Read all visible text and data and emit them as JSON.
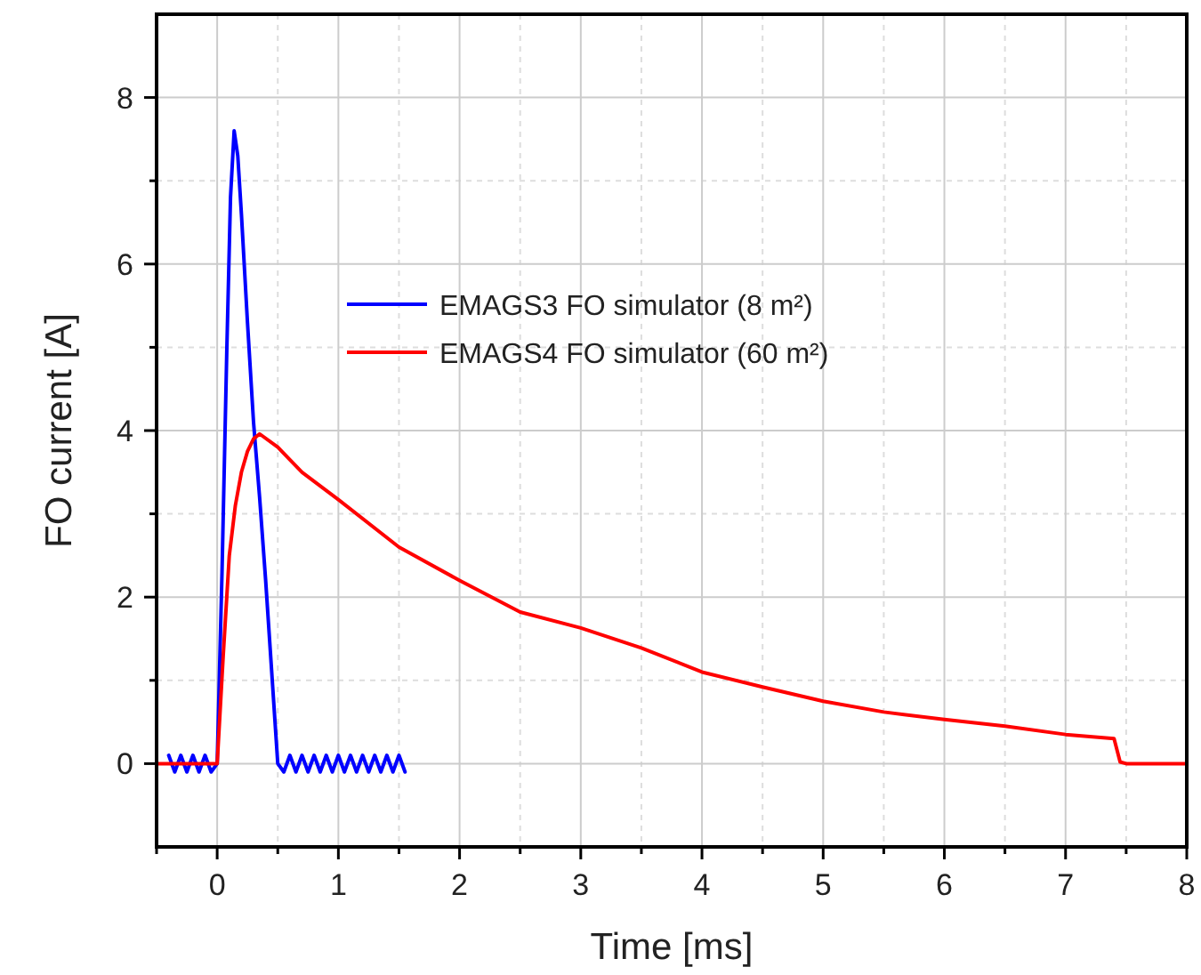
{
  "chart_data": {
    "type": "line",
    "xlabel": "Time [ms]",
    "ylabel": "FO current [A]",
    "xlim": [
      -0.5,
      8
    ],
    "ylim": [
      -1,
      9
    ],
    "xticks": [
      0,
      1,
      2,
      3,
      4,
      5,
      6,
      7,
      8
    ],
    "yticks": [
      0,
      2,
      4,
      6,
      8
    ],
    "grid": true,
    "legend": "top",
    "marker": "none",
    "line_style": "solid",
    "series": [
      {
        "name": "EMAGS3 FO simulator (8 m²)",
        "color": "#0000ff",
        "x": [
          -0.4,
          -0.35,
          -0.3,
          -0.25,
          -0.2,
          -0.15,
          -0.1,
          -0.05,
          0,
          0.04,
          0.08,
          0.11,
          0.14,
          0.17,
          0.2,
          0.25,
          0.3,
          0.35,
          0.4,
          0.45,
          0.5,
          0.55,
          0.6,
          0.65,
          0.7,
          0.75,
          0.8,
          0.85,
          0.9,
          0.95,
          1,
          1.05,
          1.1,
          1.15,
          1.2,
          1.25,
          1.3,
          1.35,
          1.4,
          1.45,
          1.5,
          1.55
        ],
        "values": [
          0.1,
          -0.1,
          0.1,
          -0.1,
          0.1,
          -0.1,
          0.1,
          -0.1,
          0,
          2.3,
          5,
          6.8,
          7.6,
          7.3,
          6.6,
          5.3,
          4.1,
          3.2,
          2.2,
          1.1,
          0,
          -0.1,
          0.1,
          -0.1,
          0.1,
          -0.1,
          0.1,
          -0.1,
          0.1,
          -0.1,
          0.1,
          -0.1,
          0.1,
          -0.1,
          0.1,
          -0.1,
          0.1,
          -0.1,
          0.1,
          -0.1,
          0.1,
          -0.1
        ]
      },
      {
        "name": "EMAGS4 FO simulator (60 m²)",
        "color": "#ff0000",
        "x": [
          -0.5,
          -0.2,
          0,
          0.05,
          0.1,
          0.15,
          0.2,
          0.25,
          0.3,
          0.35,
          0.5,
          0.7,
          1,
          1.5,
          2,
          2.5,
          3,
          3.5,
          4,
          4.5,
          5,
          5.5,
          6,
          6.5,
          7,
          7.4,
          7.45,
          7.5,
          8
        ],
        "values": [
          0,
          0,
          0,
          1.3,
          2.5,
          3.1,
          3.5,
          3.75,
          3.9,
          3.96,
          3.8,
          3.5,
          3.17,
          2.6,
          2.2,
          1.82,
          1.63,
          1.39,
          1.1,
          0.92,
          0.75,
          0.62,
          0.53,
          0.45,
          0.35,
          0.3,
          0.02,
          0,
          0
        ]
      }
    ]
  }
}
